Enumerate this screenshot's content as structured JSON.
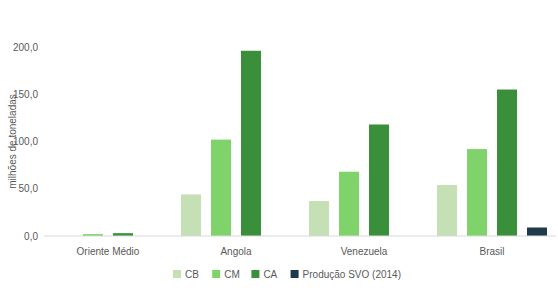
{
  "chart_data": {
    "type": "bar",
    "y_label": "milhões de toneladas",
    "categories": [
      "Oriente Médio",
      "Angola",
      "Venezuela",
      "Brasil"
    ],
    "series": [
      {
        "name": "CB",
        "color": "#c5e0b4",
        "values": [
          0,
          44,
          37,
          54
        ]
      },
      {
        "name": "CM",
        "color": "#7fd36a",
        "values": [
          2,
          102,
          68,
          92
        ]
      },
      {
        "name": "CA",
        "color": "#3a8f3a",
        "values": [
          3,
          196,
          118,
          155
        ]
      },
      {
        "name": "Produção SVO (2014)",
        "color": "#1f3a4d",
        "values": [
          null,
          null,
          null,
          9
        ]
      }
    ],
    "ylim": [
      0,
      200
    ],
    "yticks": [
      {
        "value": 0,
        "label": "0,0"
      },
      {
        "value": 50,
        "label": "50,0"
      },
      {
        "value": 100,
        "label": "100,0"
      },
      {
        "value": 150,
        "label": "150,0"
      },
      {
        "value": 200,
        "label": "200,0"
      }
    ],
    "grid": false,
    "legend": "bottom"
  }
}
